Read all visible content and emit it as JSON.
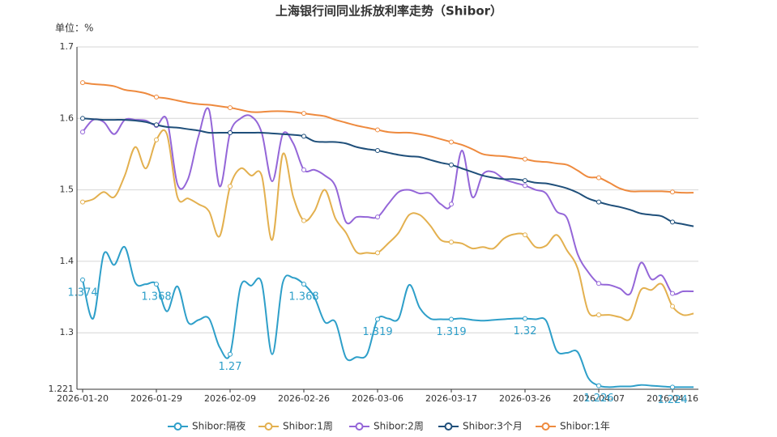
{
  "chart_data": {
    "type": "line",
    "title": "上海银行间同业拆放利率走势（Shibor）",
    "ylabel": "单位：%",
    "ylim": [
      1.221,
      1.7
    ],
    "yticks": [
      1.221,
      1.3,
      1.4,
      1.5,
      1.6,
      1.7
    ],
    "grid": true,
    "smooth": true,
    "marker_every": 7,
    "legend": "bottom",
    "categories": [
      "2026-01-20",
      null,
      null,
      null,
      null,
      null,
      null,
      "2026-01-29",
      null,
      null,
      null,
      null,
      null,
      null,
      "2026-02-09",
      null,
      null,
      null,
      null,
      null,
      null,
      "2026-02-26",
      null,
      null,
      null,
      null,
      null,
      null,
      "2026-03-06",
      null,
      null,
      null,
      null,
      null,
      null,
      "2026-03-17",
      null,
      null,
      null,
      null,
      null,
      null,
      "2026-03-26",
      null,
      null,
      null,
      null,
      null,
      null,
      "2026-04-07",
      null,
      null,
      null,
      null,
      null,
      null,
      "2026-04-16",
      null,
      null
    ],
    "series": [
      {
        "name": "Shibor:隔夜",
        "color": "#2e9fc9",
        "show_labels": true,
        "values": [
          1.374,
          1.32,
          1.41,
          1.395,
          1.42,
          1.37,
          1.368,
          1.368,
          1.33,
          1.365,
          1.315,
          1.318,
          1.32,
          1.28,
          1.27,
          1.365,
          1.366,
          1.37,
          1.27,
          1.37,
          1.377,
          1.368,
          1.35,
          1.315,
          1.315,
          1.265,
          1.266,
          1.27,
          1.319,
          1.32,
          1.32,
          1.367,
          1.335,
          1.32,
          1.319,
          1.319,
          1.32,
          1.318,
          1.317,
          1.318,
          1.319,
          1.32,
          1.32,
          1.319,
          1.317,
          1.275,
          1.272,
          1.273,
          1.237,
          1.226,
          1.224,
          1.225,
          1.225,
          1.227,
          1.226,
          1.225,
          1.224,
          1.224,
          1.224
        ]
      },
      {
        "name": "Shibor:1周",
        "color": "#e3b04f",
        "values": [
          1.483,
          1.487,
          1.497,
          1.49,
          1.52,
          1.56,
          1.53,
          1.57,
          1.578,
          1.49,
          1.488,
          1.48,
          1.47,
          1.435,
          1.505,
          1.53,
          1.52,
          1.52,
          1.43,
          1.55,
          1.49,
          1.457,
          1.47,
          1.5,
          1.46,
          1.44,
          1.413,
          1.412,
          1.412,
          1.425,
          1.44,
          1.465,
          1.465,
          1.45,
          1.43,
          1.427,
          1.425,
          1.418,
          1.42,
          1.418,
          1.432,
          1.438,
          1.437,
          1.42,
          1.422,
          1.437,
          1.415,
          1.39,
          1.33,
          1.325,
          1.325,
          1.322,
          1.32,
          1.36,
          1.36,
          1.368,
          1.337,
          1.325,
          1.327
        ]
      },
      {
        "name": "Shibor:2周",
        "color": "#9466d8",
        "values": [
          1.581,
          1.598,
          1.595,
          1.578,
          1.598,
          1.598,
          1.597,
          1.59,
          1.598,
          1.508,
          1.515,
          1.575,
          1.612,
          1.505,
          1.58,
          1.6,
          1.603,
          1.58,
          1.512,
          1.578,
          1.565,
          1.528,
          1.528,
          1.52,
          1.505,
          1.455,
          1.462,
          1.462,
          1.462,
          1.48,
          1.497,
          1.5,
          1.495,
          1.495,
          1.48,
          1.48,
          1.555,
          1.49,
          1.522,
          1.525,
          1.515,
          1.51,
          1.506,
          1.5,
          1.495,
          1.47,
          1.46,
          1.41,
          1.385,
          1.369,
          1.367,
          1.362,
          1.355,
          1.398,
          1.375,
          1.38,
          1.355,
          1.358,
          1.358
        ]
      },
      {
        "name": "Shibor:3个月",
        "color": "#1f4f7a",
        "values": [
          1.6,
          1.599,
          1.598,
          1.598,
          1.598,
          1.597,
          1.595,
          1.591,
          1.588,
          1.587,
          1.585,
          1.583,
          1.58,
          1.58,
          1.58,
          1.58,
          1.58,
          1.58,
          1.579,
          1.578,
          1.577,
          1.575,
          1.568,
          1.567,
          1.567,
          1.565,
          1.56,
          1.557,
          1.555,
          1.552,
          1.549,
          1.547,
          1.546,
          1.542,
          1.538,
          1.535,
          1.53,
          1.525,
          1.52,
          1.517,
          1.515,
          1.515,
          1.513,
          1.51,
          1.509,
          1.506,
          1.502,
          1.496,
          1.488,
          1.483,
          1.479,
          1.476,
          1.472,
          1.467,
          1.465,
          1.463,
          1.455,
          1.452,
          1.449
        ]
      },
      {
        "name": "Shibor:1年",
        "color": "#ee8a3e",
        "values": [
          1.65,
          1.648,
          1.647,
          1.645,
          1.64,
          1.638,
          1.635,
          1.63,
          1.628,
          1.625,
          1.622,
          1.62,
          1.619,
          1.617,
          1.615,
          1.612,
          1.609,
          1.609,
          1.61,
          1.61,
          1.609,
          1.607,
          1.605,
          1.603,
          1.598,
          1.594,
          1.59,
          1.587,
          1.584,
          1.581,
          1.58,
          1.58,
          1.578,
          1.575,
          1.571,
          1.567,
          1.563,
          1.557,
          1.55,
          1.548,
          1.547,
          1.545,
          1.543,
          1.54,
          1.539,
          1.537,
          1.535,
          1.527,
          1.518,
          1.517,
          1.51,
          1.502,
          1.498,
          1.498,
          1.498,
          1.498,
          1.497,
          1.496,
          1.496
        ]
      }
    ]
  }
}
